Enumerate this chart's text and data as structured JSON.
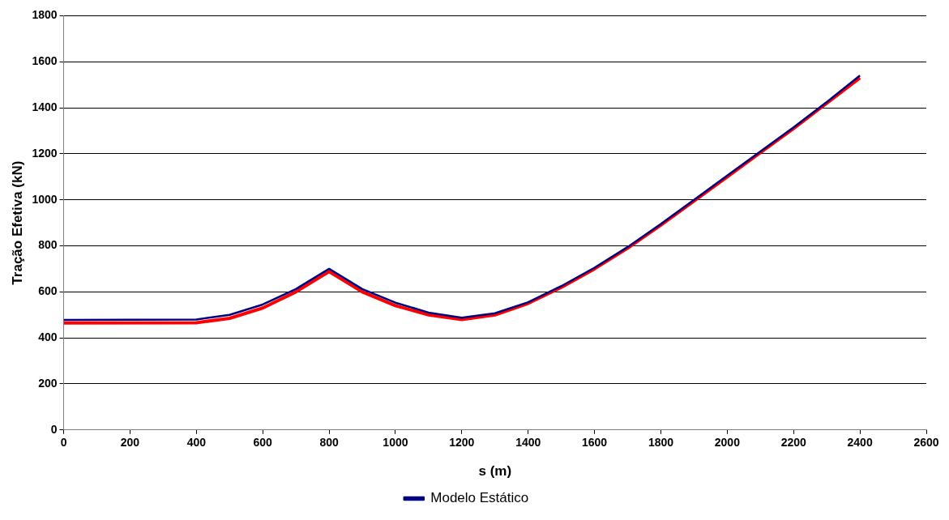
{
  "chart_data": {
    "type": "line",
    "xlabel": "s (m)",
    "ylabel": "Tração Efetiva (kN)",
    "xlim": [
      0,
      2600
    ],
    "xticks": [
      0,
      200,
      400,
      600,
      800,
      1000,
      1200,
      1400,
      1600,
      1800,
      2000,
      2200,
      2400,
      2600
    ],
    "ylim": [
      0,
      1800
    ],
    "yticks": [
      0,
      200,
      400,
      600,
      800,
      1000,
      1200,
      1400,
      1600,
      1800
    ],
    "grid": "y",
    "legend": "bottom",
    "marker": "none",
    "line_style": "solid",
    "x": [
      0,
      400,
      500,
      600,
      700,
      800,
      900,
      1000,
      1100,
      1200,
      1300,
      1400,
      1500,
      1600,
      1700,
      1800,
      1900,
      2000,
      2100,
      2200,
      2300,
      2400
    ],
    "series": [
      {
        "color": "#ff0000",
        "values": [
          465,
          466,
          485,
          530,
          600,
          688,
          600,
          540,
          500,
          480,
          500,
          550,
          620,
          700,
          790,
          890,
          995,
          1100,
          1205,
          1310,
          1420,
          1530
        ]
      },
      {
        "name": "Modelo Estático",
        "color": "#000080",
        "values": [
          478,
          480,
          500,
          545,
          612,
          700,
          612,
          553,
          510,
          488,
          507,
          555,
          625,
          705,
          795,
          895,
          1000,
          1105,
          1210,
          1315,
          1425,
          1540
        ]
      }
    ]
  }
}
